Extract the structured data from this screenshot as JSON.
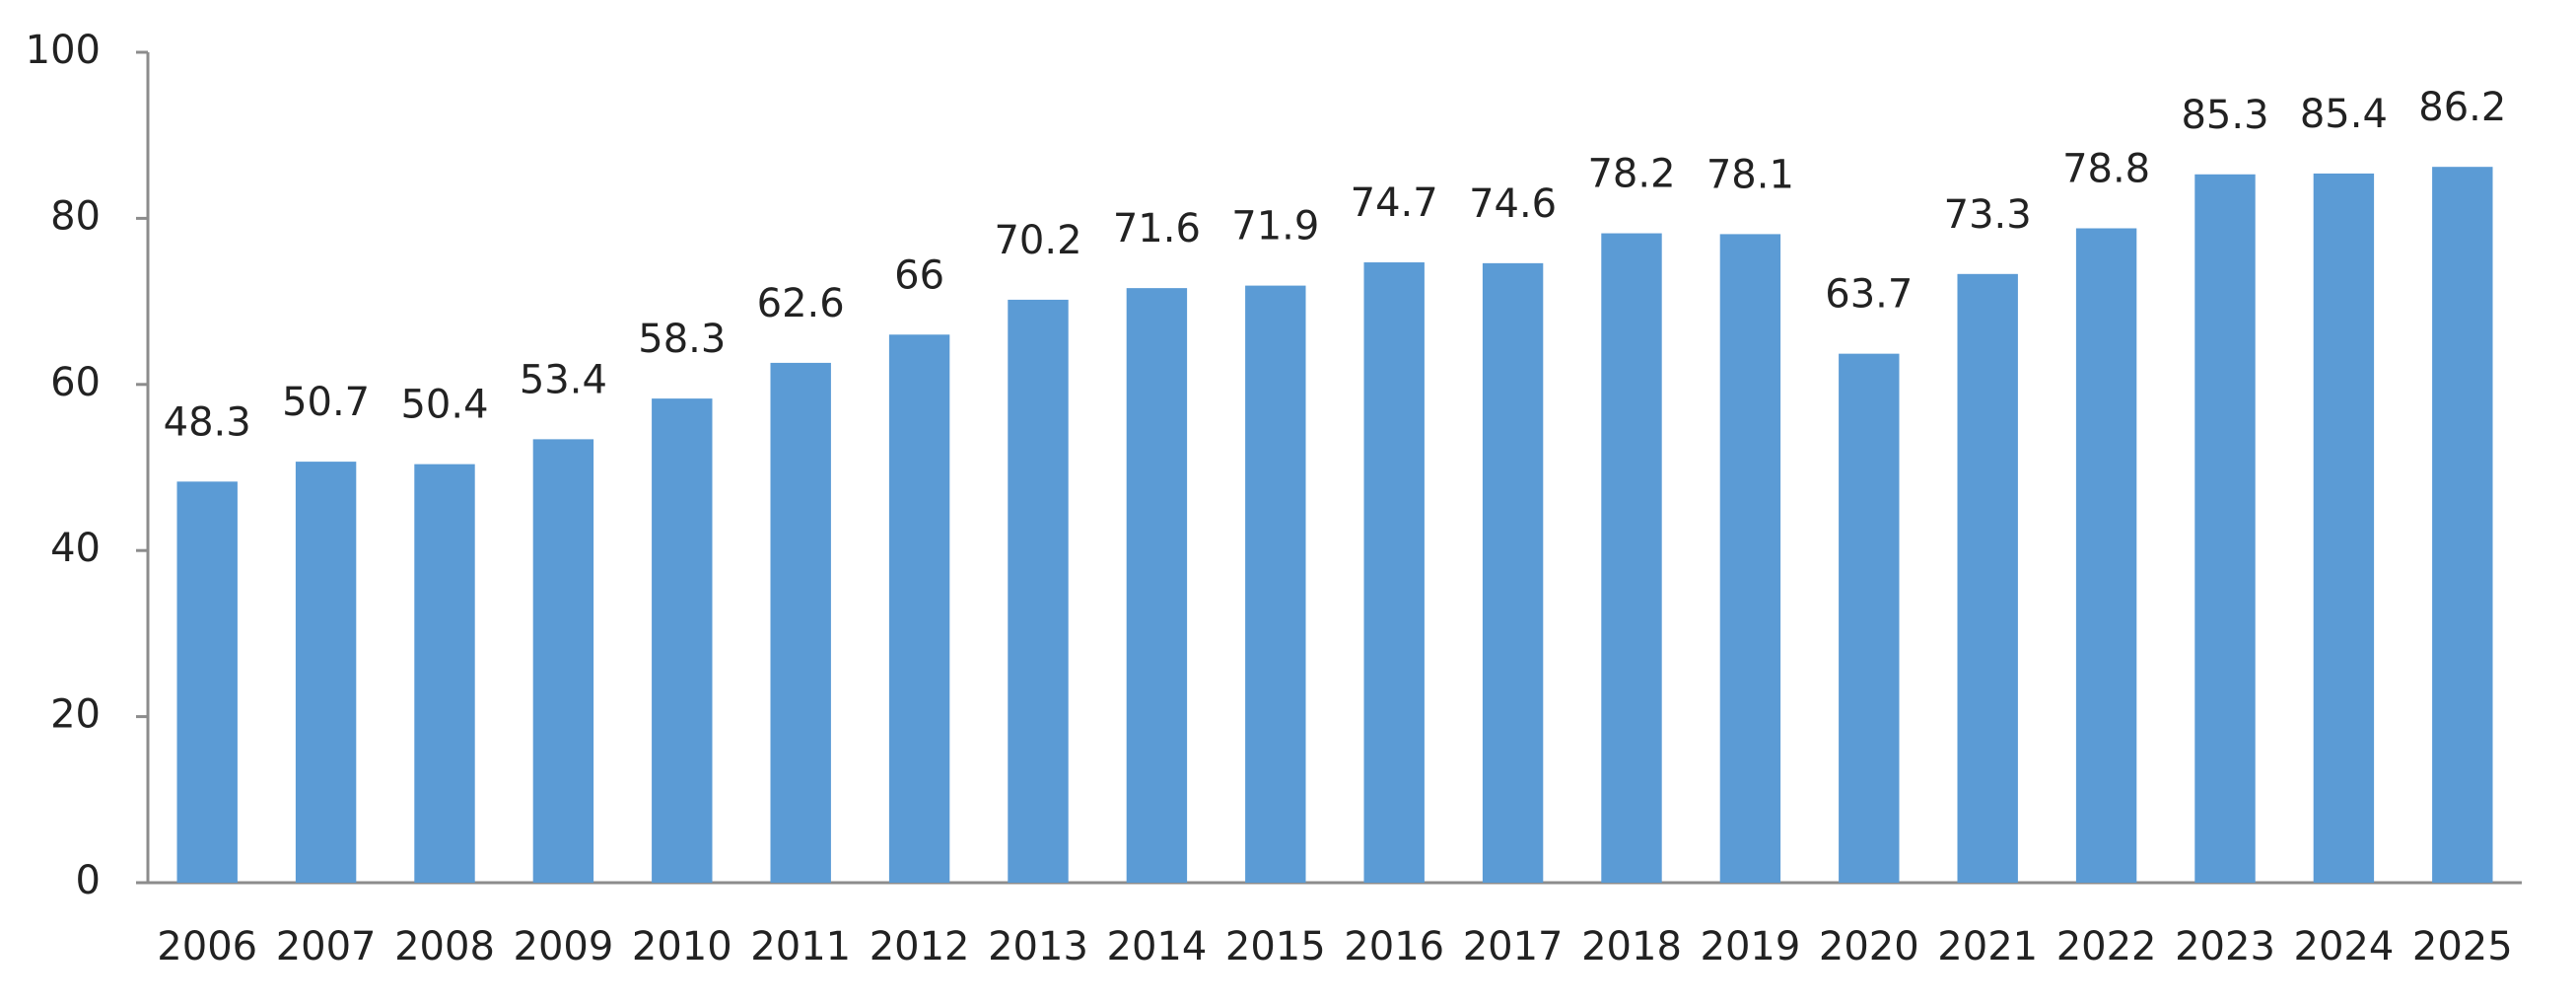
{
  "chart_data": {
    "type": "bar",
    "categories": [
      "2006",
      "2007",
      "2008",
      "2009",
      "2010",
      "2011",
      "2012",
      "2013",
      "2014",
      "2015",
      "2016",
      "2017",
      "2018",
      "2019",
      "2020",
      "2021",
      "2022",
      "2023",
      "2024",
      "2025"
    ],
    "values": [
      48.3,
      50.7,
      50.4,
      53.4,
      58.3,
      62.6,
      66,
      70.2,
      71.6,
      71.9,
      74.7,
      74.6,
      78.2,
      78.1,
      63.7,
      73.3,
      78.8,
      85.3,
      85.4,
      86.2
    ],
    "color": "#5b9bd5",
    "ylim": [
      0,
      100
    ],
    "yticks": [
      0,
      20,
      40,
      60,
      80,
      100
    ],
    "grid": false
  }
}
